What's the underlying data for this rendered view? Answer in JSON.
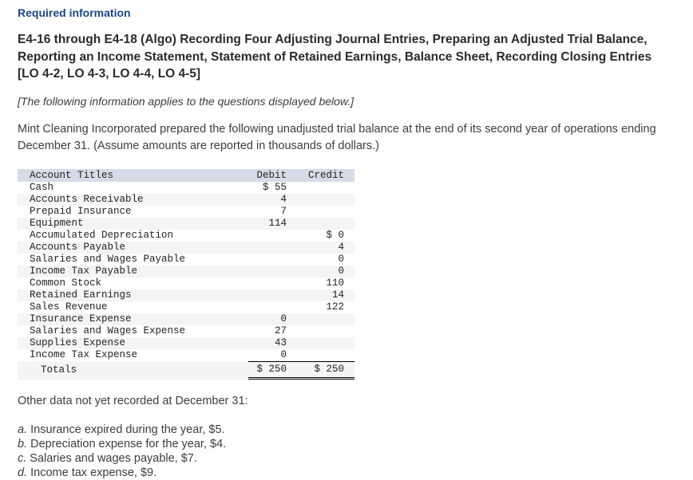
{
  "page": {
    "required_information": "Required information",
    "title": "E4-16 through E4-18 (Algo) Recording Four Adjusting Journal Entries, Preparing an Adjusted Trial Balance, Reporting an Income Statement, Statement of Retained Earnings, Balance Sheet, Recording Closing Entries [LO 4-2, LO 4-3, LO 4-4, LO 4-5]",
    "applies_note": "[The following information applies to the questions displayed below.]",
    "intro": "Mint Cleaning Incorporated prepared the following unadjusted trial balance at the end of its second year of operations ending December 31. (Assume amounts are reported in thousands of dollars.)"
  },
  "colors": {
    "heading_navy": "#1b4688",
    "table_header_bg": "#d5dce8",
    "table_stripe_bg": "#f4f4f6"
  },
  "trial_balance": {
    "headers": {
      "account": "Account Titles",
      "debit": "Debit",
      "credit": "Credit"
    },
    "rows": [
      {
        "title": "Cash",
        "debit": "$ 55",
        "credit": ""
      },
      {
        "title": "Accounts Receivable",
        "debit": "4",
        "credit": ""
      },
      {
        "title": "Prepaid Insurance",
        "debit": "7",
        "credit": ""
      },
      {
        "title": "Equipment",
        "debit": "114",
        "credit": ""
      },
      {
        "title": "Accumulated Depreciation",
        "debit": "",
        "credit": "$ 0"
      },
      {
        "title": "Accounts Payable",
        "debit": "",
        "credit": "4"
      },
      {
        "title": "Salaries and Wages Payable",
        "debit": "",
        "credit": "0"
      },
      {
        "title": "Income Tax Payable",
        "debit": "",
        "credit": "0"
      },
      {
        "title": "Common Stock",
        "debit": "",
        "credit": "110"
      },
      {
        "title": "Retained Earnings",
        "debit": "",
        "credit": "14"
      },
      {
        "title": "Sales Revenue",
        "debit": "",
        "credit": "122"
      },
      {
        "title": "Insurance Expense",
        "debit": "0",
        "credit": ""
      },
      {
        "title": "Salaries and Wages Expense",
        "debit": "27",
        "credit": ""
      },
      {
        "title": "Supplies Expense",
        "debit": "43",
        "credit": ""
      },
      {
        "title": "Income Tax Expense",
        "debit": "0",
        "credit": ""
      }
    ],
    "totals": {
      "label": "Totals",
      "debit": "$ 250",
      "credit": "$ 250"
    }
  },
  "other_data": {
    "heading": "Other data not yet recorded at December 31:",
    "items": [
      {
        "letter": "a.",
        "text": "Insurance expired during the year, $5."
      },
      {
        "letter": "b.",
        "text": "Depreciation expense for the year, $4."
      },
      {
        "letter": "c.",
        "text": "Salaries and wages payable, $7."
      },
      {
        "letter": "d.",
        "text": "Income tax expense, $9."
      }
    ]
  }
}
